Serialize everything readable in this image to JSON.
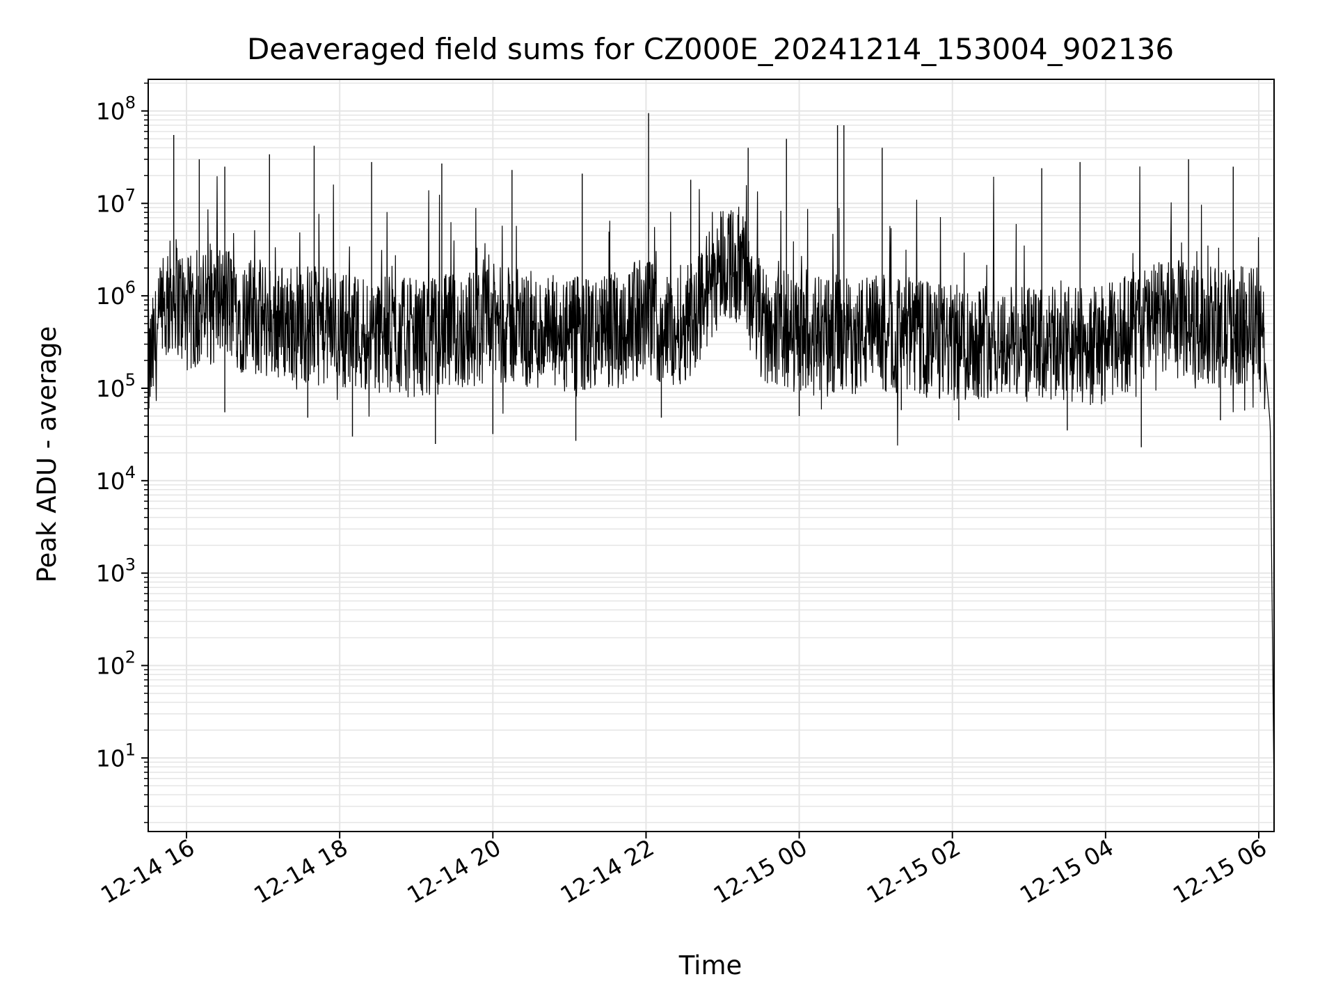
{
  "chart_data": {
    "type": "line",
    "title": "Deaveraged field sums for CZ000E_20241214_153004_902136",
    "xlabel": "Time",
    "ylabel": "Peak ADU - average",
    "x_range": [
      "2024-12-14 15:30",
      "2024-12-15 06:12"
    ],
    "yscale": "log",
    "ylim": [
      1.6,
      220000000
    ],
    "y_major_ticks": [
      10,
      100,
      1000,
      10000,
      100000,
      1000000,
      10000000,
      100000000
    ],
    "y_tick_labels": [
      {
        "base": "10",
        "exp": "1"
      },
      {
        "base": "10",
        "exp": "2"
      },
      {
        "base": "10",
        "exp": "3"
      },
      {
        "base": "10",
        "exp": "4"
      },
      {
        "base": "10",
        "exp": "5"
      },
      {
        "base": "10",
        "exp": "6"
      },
      {
        "base": "10",
        "exp": "7"
      },
      {
        "base": "10",
        "exp": "8"
      }
    ],
    "x_ticks": [
      {
        "time": "2024-12-14 16:00",
        "label": "12-14 16"
      },
      {
        "time": "2024-12-14 18:00",
        "label": "12-14 18"
      },
      {
        "time": "2024-12-14 20:00",
        "label": "12-14 20"
      },
      {
        "time": "2024-12-14 22:00",
        "label": "12-14 22"
      },
      {
        "time": "2024-12-15 00:00",
        "label": "12-15 00"
      },
      {
        "time": "2024-12-15 02:00",
        "label": "12-15 02"
      },
      {
        "time": "2024-12-15 04:00",
        "label": "12-15 04"
      },
      {
        "time": "2024-12-15 06:00",
        "label": "12-15 06"
      }
    ],
    "grid": true,
    "line_color": "#000000",
    "grid_color": "#e5e5e5",
    "series": [
      {
        "x": [
          "2024-12-14 15:30",
          "2024-12-14 15:40",
          "2024-12-14 15:50",
          "2024-12-14 16:00",
          "2024-12-14 16:15",
          "2024-12-14 16:30",
          "2024-12-14 16:45",
          "2024-12-14 17:00",
          "2024-12-14 17:30",
          "2024-12-14 18:00",
          "2024-12-14 18:30",
          "2024-12-14 19:00",
          "2024-12-14 19:30",
          "2024-12-14 20:00",
          "2024-12-14 20:30",
          "2024-12-14 21:00",
          "2024-12-14 21:30",
          "2024-12-14 22:00",
          "2024-12-14 22:20",
          "2024-12-14 22:40",
          "2024-12-14 23:00",
          "2024-12-14 23:15",
          "2024-12-14 23:30",
          "2024-12-14 23:45",
          "2024-12-15 00:00",
          "2024-12-15 00:30",
          "2024-12-15 01:00",
          "2024-12-15 01:30",
          "2024-12-15 02:00",
          "2024-12-15 02:30",
          "2024-12-15 03:00",
          "2024-12-15 03:30",
          "2024-12-15 04:00",
          "2024-12-15 04:30",
          "2024-12-15 05:00",
          "2024-12-15 05:30",
          "2024-12-15 06:00",
          "2024-12-15 06:05",
          "2024-12-15 06:09",
          "2024-12-15 06:12"
        ],
        "y": [
          150000,
          500000,
          1200000,
          600000,
          700000,
          900000,
          600000,
          550000,
          500000,
          450000,
          380000,
          350000,
          400000,
          500000,
          420000,
          350000,
          400000,
          600000,
          400000,
          700000,
          2500000,
          2000000,
          500000,
          450000,
          380000,
          350000,
          400000,
          350000,
          300000,
          350000,
          280000,
          280000,
          300000,
          500000,
          550000,
          450000,
          500000,
          200000,
          40000,
          4
        ]
      },
      {
        "x": [
          "2024-12-14 15:50",
          "2024-12-14 16:10",
          "2024-12-14 16:30",
          "2024-12-14 17:05",
          "2024-12-14 17:40",
          "2024-12-14 18:25",
          "2024-12-14 19:20",
          "2024-12-14 20:15",
          "2024-12-14 21:10",
          "2024-12-14 22:02",
          "2024-12-14 22:35",
          "2024-12-14 23:20",
          "2024-12-14 23:50",
          "2024-12-15 00:30",
          "2024-12-15 00:35",
          "2024-12-15 01:05",
          "2024-12-15 03:10",
          "2024-12-15 03:40",
          "2024-12-15 05:05",
          "2024-12-15 05:40"
        ],
        "y": [
          55000000,
          30000000,
          25000000,
          34000000,
          42000000,
          28000000,
          27000000,
          23000000,
          21000000,
          95000000,
          18000000,
          40000000,
          50000000,
          70000000,
          70000000,
          40000000,
          24000000,
          28000000,
          30000000,
          25000000
        ],
        "type": "spikes"
      },
      {
        "x": [
          "2024-12-14 16:30",
          "2024-12-14 17:35",
          "2024-12-14 18:10",
          "2024-12-14 19:15",
          "2024-12-14 20:00",
          "2024-12-14 21:05",
          "2024-12-14 22:12",
          "2024-12-15 00:00",
          "2024-12-15 01:20",
          "2024-12-15 02:05",
          "2024-12-15 03:30",
          "2024-12-15 04:28",
          "2024-12-15 05:30"
        ],
        "y": [
          55000,
          48000,
          30000,
          25000,
          32000,
          27000,
          48000,
          50000,
          58000,
          45000,
          35000,
          23000,
          45000
        ],
        "type": "dips"
      }
    ]
  }
}
